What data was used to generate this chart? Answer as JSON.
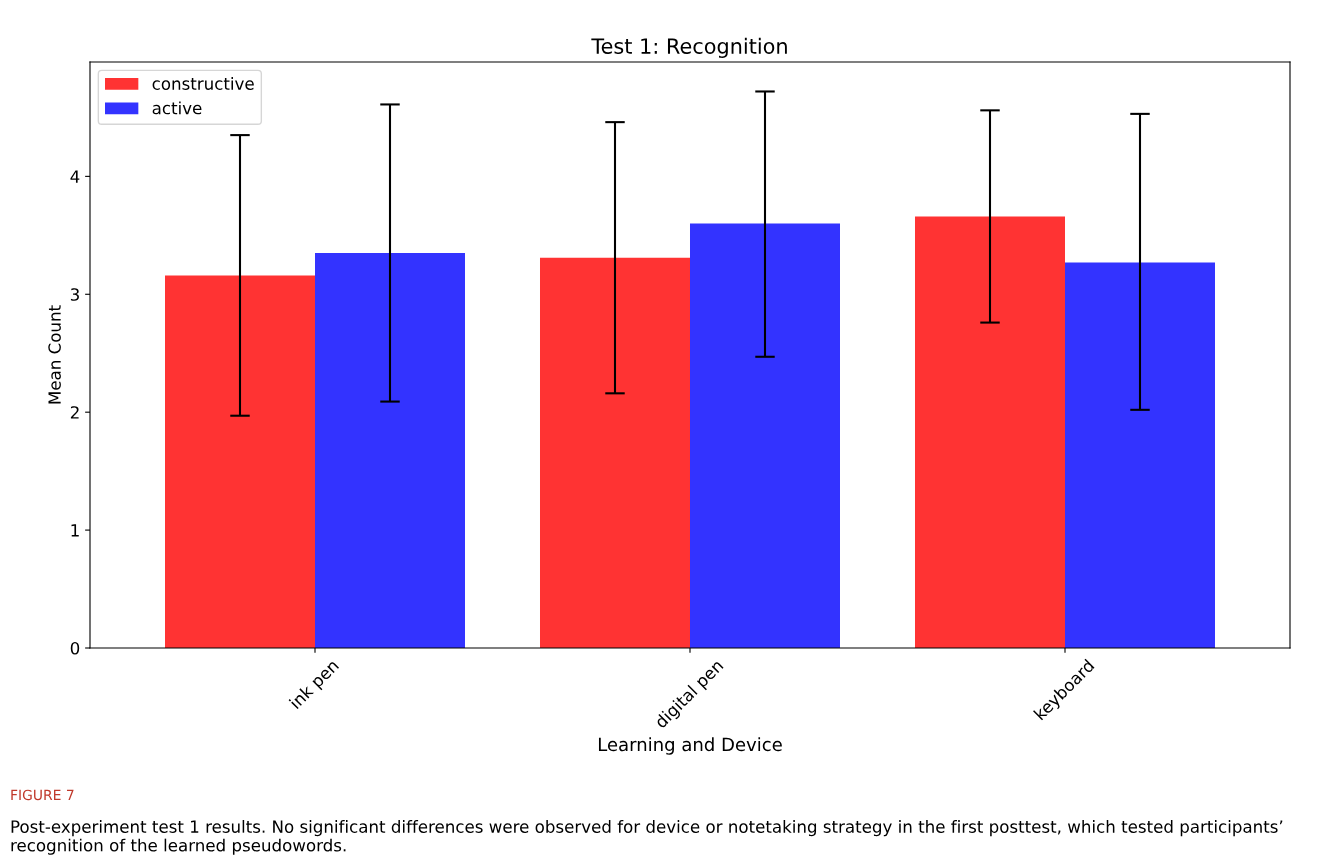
{
  "chart_data": {
    "type": "bar",
    "title": "Test 1: Recognition",
    "xlabel": "Learning and Device",
    "ylabel": "Mean Count",
    "categories": [
      "ink pen",
      "digital pen",
      "keyboard"
    ],
    "series": [
      {
        "name": "constructive",
        "color": "#ff3333",
        "values": [
          3.16,
          3.31,
          3.66
        ],
        "errors": [
          [
            1.97,
            4.35
          ],
          [
            2.16,
            4.46
          ],
          [
            2.76,
            4.56
          ]
        ]
      },
      {
        "name": "active",
        "color": "#3333ff",
        "values": [
          3.35,
          3.6,
          3.27
        ],
        "errors": [
          [
            2.09,
            4.61
          ],
          [
            2.47,
            4.72
          ],
          [
            2.02,
            4.53
          ]
        ]
      }
    ],
    "ylim": [
      0,
      4.97
    ],
    "yticks": [
      0,
      1,
      2,
      3,
      4
    ],
    "grid": false,
    "legend": "top left",
    "annotations": [
      "FIGURE 7",
      "Post-experiment test 1 results. No significant differences were observed for device or notetaking strategy in the first posttest, which tested participants’ recognition of the learned pseudowords."
    ]
  }
}
